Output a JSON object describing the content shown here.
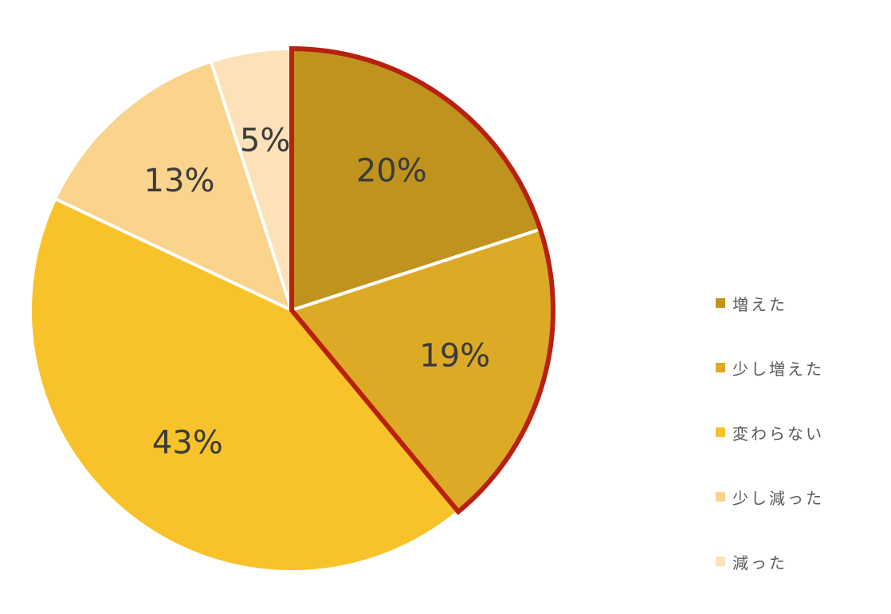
{
  "chart_data": {
    "type": "pie",
    "title": "",
    "highlighted_slices": [
      "増えた",
      "少し増えた"
    ],
    "highlight_color": "#B8200F",
    "start_angle_deg": 0,
    "direction": "clockwise",
    "slices": [
      {
        "label": "増えた",
        "value": 20,
        "display": "20%",
        "color": "#BF931E"
      },
      {
        "label": "少し増えた",
        "value": 19,
        "display": "19%",
        "color": "#DDAA26"
      },
      {
        "label": "変わらない",
        "value": 43,
        "display": "43%",
        "color": "#F8C32A"
      },
      {
        "label": "少し減った",
        "value": 13,
        "display": "13%",
        "color": "#FAD38C"
      },
      {
        "label": "減った",
        "value": 5,
        "display": "5%",
        "color": "#FCE1B9"
      }
    ],
    "legend": {
      "position": "right"
    }
  }
}
